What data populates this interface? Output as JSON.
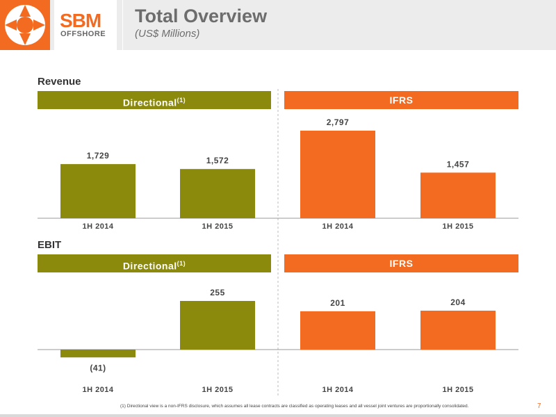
{
  "header": {
    "logo_top": "SBM",
    "logo_bottom": "OFFSHORE",
    "title": "Total Overview",
    "subtitle": "(US$ Millions)"
  },
  "colors": {
    "directional": "#8b8a0c",
    "ifrs": "#f26b21",
    "header_bg": "#ececec"
  },
  "sections": {
    "revenue": {
      "label": "Revenue",
      "band_left": "Directional",
      "band_left_sup": "(1)",
      "band_right": "IFRS"
    },
    "ebit": {
      "label": "EBIT",
      "band_left": "Directional",
      "band_left_sup": "(1)",
      "band_right": "IFRS"
    }
  },
  "chart_data": [
    {
      "type": "bar",
      "title": "Revenue",
      "categories": [
        "1H 2014",
        "1H 2015",
        "1H 2014",
        "1H 2015"
      ],
      "groups": [
        "Directional",
        "Directional",
        "IFRS",
        "IFRS"
      ],
      "values": [
        1729,
        1572,
        2797,
        1457
      ],
      "labels": [
        "1,729",
        "1,572",
        "2,797",
        "1,457"
      ],
      "ylim": [
        0,
        3000
      ]
    },
    {
      "type": "bar",
      "title": "EBIT",
      "categories": [
        "1H 2014",
        "1H 2015",
        "1H 2014",
        "1H 2015"
      ],
      "groups": [
        "Directional",
        "Directional",
        "IFRS",
        "IFRS"
      ],
      "values": [
        -41,
        255,
        201,
        204
      ],
      "labels": [
        "(41)",
        "255",
        "201",
        "204"
      ],
      "ylim": [
        -41,
        300
      ]
    }
  ],
  "footnote": "(1) Directional view is a non-IFRS disclosure, which assumes all lease contracts are classified as operating leases and all vessel joint ventures are proportionally consolidated.",
  "page_number": "7"
}
